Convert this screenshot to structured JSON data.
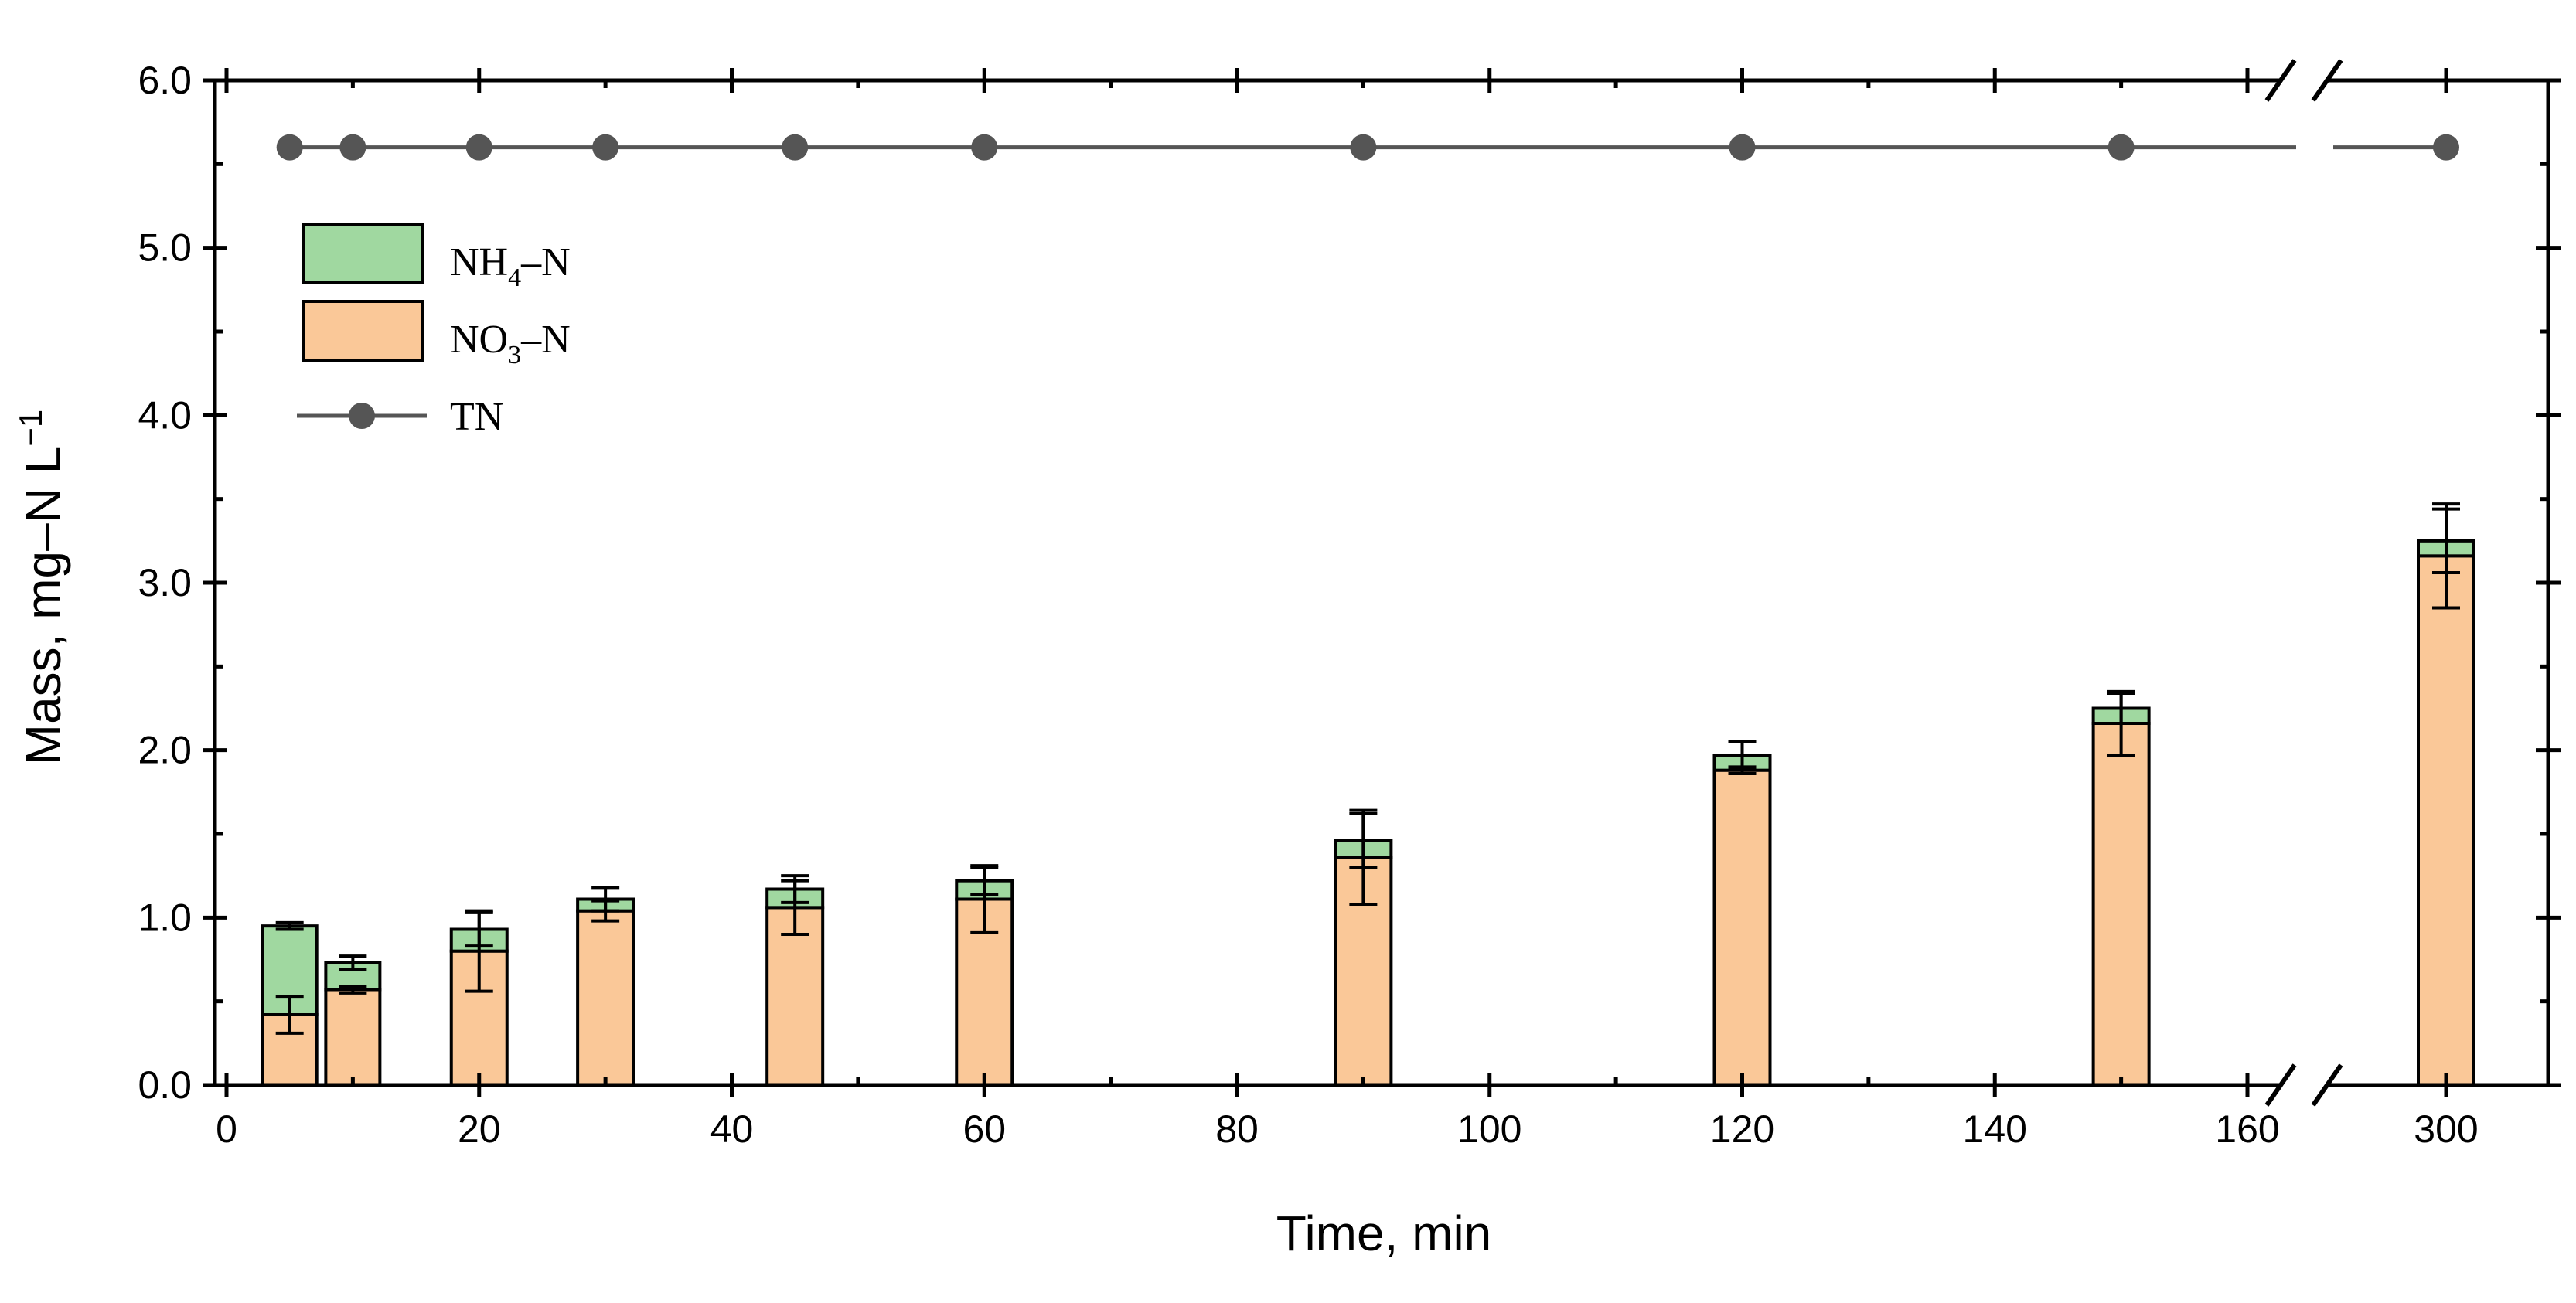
{
  "chart_data": {
    "type": "bar",
    "xlabel": "Time, min",
    "ylabel": "Mass, mg–N L",
    "ylabel_sup": "−1",
    "ylim": [
      0,
      6.0
    ],
    "yticks": [
      "0.0",
      "1.0",
      "2.0",
      "3.0",
      "4.0",
      "5.0",
      "6.0"
    ],
    "xlim": [
      0,
      310
    ],
    "xticks": [
      "0",
      "20",
      "40",
      "60",
      "80",
      "100",
      "120",
      "140",
      "160",
      "300"
    ],
    "x_axis_break": [
      165,
      295
    ],
    "stacked": true,
    "x": [
      5,
      10,
      20,
      30,
      45,
      60,
      90,
      120,
      150,
      300
    ],
    "series": [
      {
        "name": "NO3–N",
        "kind": "bar",
        "color": "#FAC898",
        "values": [
          0.42,
          0.57,
          0.8,
          1.04,
          1.06,
          1.11,
          1.36,
          1.88,
          2.16,
          3.16
        ],
        "error": [
          0.11,
          0.02,
          0.24,
          0.06,
          0.16,
          0.2,
          0.28,
          0.02,
          0.19,
          0.31
        ]
      },
      {
        "name": "NH4–N",
        "kind": "bar",
        "color": "#A0D8A0",
        "values": [
          0.53,
          0.16,
          0.13,
          0.07,
          0.11,
          0.11,
          0.1,
          0.09,
          0.09,
          0.09
        ],
        "error": [
          0.02,
          0.04,
          0.1,
          0.07,
          0.08,
          0.08,
          0.16,
          0.08,
          0.09,
          0.19
        ]
      },
      {
        "name": "TN",
        "kind": "line",
        "color": "#555555",
        "values": [
          5.6,
          5.6,
          5.6,
          5.6,
          5.6,
          5.6,
          5.6,
          5.6,
          5.6,
          5.6
        ]
      }
    ],
    "legend": {
      "placement": "top-left",
      "items": [
        {
          "main": "NH",
          "sub": "4",
          "rest": "–N",
          "type": "bar",
          "color": "#A0D8A0"
        },
        {
          "main": "NO",
          "sub": "3",
          "rest": "–N",
          "type": "bar",
          "color": "#FAC898"
        },
        {
          "main": "TN",
          "sub": "",
          "rest": "",
          "type": "line",
          "color": "#555555"
        }
      ]
    },
    "grid": false
  }
}
